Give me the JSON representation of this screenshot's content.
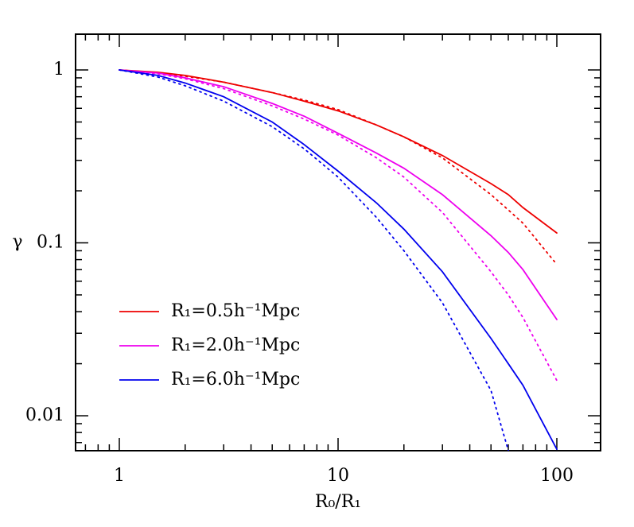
{
  "chart_data": {
    "type": "line",
    "xlabel": "R₀/R₁",
    "ylabel": "γ",
    "xlog": true,
    "ylog": true,
    "xlim": [
      0.631,
      158.5
    ],
    "ylim": [
      0.00628,
      1.61
    ],
    "xticks": [
      1,
      10,
      100
    ],
    "yticks": [
      0.01,
      0.1,
      1
    ],
    "xminorticks": [
      0.7,
      0.8,
      0.9,
      2,
      3,
      4,
      5,
      6,
      7,
      8,
      9,
      20,
      30,
      40,
      50,
      60,
      70,
      80,
      90
    ],
    "yminorticks": [
      0.007,
      0.008,
      0.009,
      0.02,
      0.03,
      0.04,
      0.05,
      0.06,
      0.07,
      0.08,
      0.09,
      0.2,
      0.3,
      0.4,
      0.5,
      0.6,
      0.7,
      0.8,
      0.9
    ],
    "legend": "lower left",
    "x": [
      1,
      1.5,
      2,
      3,
      5,
      7,
      10,
      15,
      20,
      30,
      50,
      60,
      70,
      100
    ],
    "series": [
      {
        "name": "R₁=0.5h⁻¹Mpc",
        "color": "#ee0000",
        "dash": "solid",
        "values": [
          1,
          0.97,
          0.93,
          0.85,
          0.74,
          0.66,
          0.58,
          0.48,
          0.41,
          0.32,
          0.22,
          0.19,
          0.16,
          0.114
        ]
      },
      {
        "color": "#ee0000",
        "dash": "dotted",
        "values": [
          1,
          0.96,
          0.92,
          0.85,
          0.74,
          0.67,
          0.59,
          0.48,
          0.41,
          0.31,
          0.19,
          0.155,
          0.13,
          0.075
        ]
      },
      {
        "name": "R₁=2.0h⁻¹Mpc",
        "color": "#ee00ee",
        "dash": "solid",
        "values": [
          1,
          0.96,
          0.9,
          0.8,
          0.64,
          0.54,
          0.43,
          0.33,
          0.27,
          0.19,
          0.11,
          0.088,
          0.07,
          0.036
        ]
      },
      {
        "color": "#ee00ee",
        "dash": "dotted",
        "values": [
          1,
          0.95,
          0.89,
          0.78,
          0.62,
          0.52,
          0.42,
          0.31,
          0.24,
          0.15,
          0.068,
          0.05,
          0.037,
          0.016
        ]
      },
      {
        "name": "R₁=6.0h⁻¹Mpc",
        "color": "#0000ee",
        "dash": "solid",
        "values": [
          1,
          0.93,
          0.84,
          0.7,
          0.5,
          0.37,
          0.26,
          0.17,
          0.12,
          0.068,
          0.028,
          0.02,
          0.015,
          0.0064
        ]
      },
      {
        "color": "#0000ee",
        "dash": "dotted",
        "values": [
          1,
          0.91,
          0.81,
          0.66,
          0.47,
          0.35,
          0.24,
          0.14,
          0.09,
          0.045,
          0.014,
          0.0063,
          null,
          null
        ]
      }
    ]
  }
}
